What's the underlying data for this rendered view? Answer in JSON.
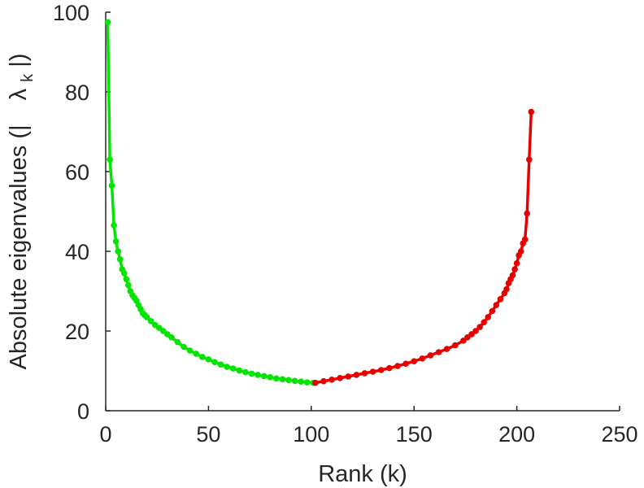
{
  "chart_data": {
    "type": "line",
    "title": "",
    "xlabel": "Rank (k)",
    "ylabel_main": "Absolute eigenvalues (|",
    "ylabel_symbol": "λ",
    "ylabel_subscript": "k",
    "ylabel_close": "|)",
    "xlim": [
      0,
      250
    ],
    "ylim": [
      0,
      100
    ],
    "xticks": [
      0,
      50,
      100,
      150,
      200,
      250
    ],
    "yticks": [
      0,
      20,
      40,
      60,
      80,
      100
    ],
    "grid": false,
    "series": [
      {
        "color": "#00e600",
        "marker": "circle",
        "x": [
          1,
          2,
          3,
          4,
          5,
          6,
          7,
          8,
          9,
          10,
          11,
          12,
          13,
          14,
          15,
          16,
          17,
          18,
          19,
          20,
          22,
          24,
          26,
          28,
          30,
          32,
          35,
          38,
          41,
          44,
          47,
          50,
          53,
          56,
          59,
          62,
          65,
          68,
          71,
          74,
          77,
          80,
          83,
          86,
          89,
          92,
          95,
          98,
          101
        ],
        "y": [
          97.5,
          63,
          56.5,
          46.5,
          42.5,
          40,
          38,
          35.5,
          34.5,
          33,
          31.5,
          30,
          29,
          28.3,
          27.6,
          26.5,
          25.5,
          24.5,
          24,
          23.5,
          22.5,
          21.5,
          20.8,
          20,
          19.2,
          18.4,
          17.2,
          16,
          15.1,
          14.3,
          13.5,
          12.9,
          12.2,
          11.6,
          11,
          10.6,
          10.1,
          9.7,
          9.3,
          9,
          8.7,
          8.4,
          8.1,
          7.9,
          7.7,
          7.5,
          7.3,
          7.1,
          7
        ]
      },
      {
        "color": "#e60000",
        "marker": "circle",
        "x": [
          102,
          106,
          110,
          114,
          118,
          122,
          126,
          130,
          134,
          138,
          142,
          146,
          150,
          154,
          158,
          162,
          166,
          170,
          174,
          176,
          178,
          180,
          182,
          184,
          186,
          188,
          190,
          192,
          194,
          195,
          196,
          197,
          198,
          199,
          200,
          201,
          202,
          203,
          204,
          205,
          206,
          207
        ],
        "y": [
          7,
          7.4,
          7.8,
          8.2,
          8.6,
          9,
          9.4,
          9.8,
          10.2,
          10.7,
          11.2,
          11.8,
          12.4,
          13.1,
          13.9,
          14.7,
          15.5,
          16.4,
          17.6,
          18.4,
          19.2,
          20,
          21,
          22.2,
          23.5,
          25,
          26.5,
          28,
          29.5,
          30.5,
          32,
          33,
          34,
          35.5,
          37,
          39,
          40,
          42,
          43,
          49.5,
          63,
          75
        ]
      }
    ]
  }
}
